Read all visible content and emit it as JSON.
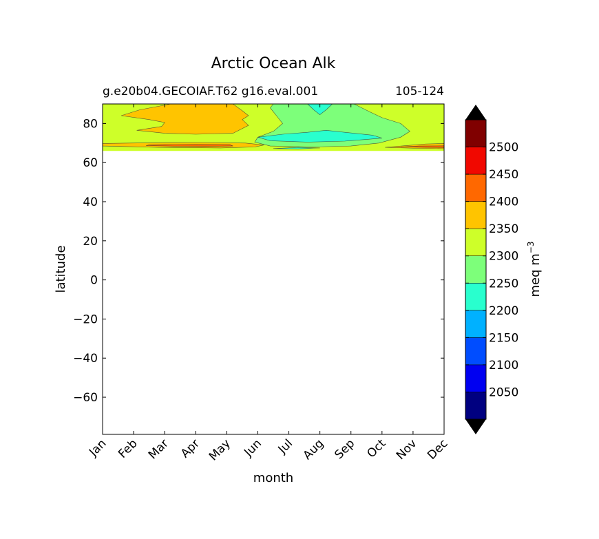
{
  "chart_data": {
    "type": "contour",
    "title": "Arctic Ocean Alk",
    "subtitle_left": "g.e20b04.GECOIAF.T62 g16.eval.001",
    "subtitle_right": "105-124",
    "xlabel": "month",
    "ylabel": "latitude",
    "x_ticks": [
      "Jan",
      "Feb",
      "Mar",
      "Apr",
      "May",
      "Jun",
      "Jul",
      "Aug",
      "Sep",
      "Oct",
      "Nov",
      "Dec"
    ],
    "xlim": [
      0,
      11
    ],
    "y_ticks": [
      80,
      60,
      40,
      20,
      0,
      -20,
      -40,
      -60
    ],
    "y_tick_labels": [
      "80",
      "60",
      "40",
      "20",
      "0",
      "−20",
      "−40",
      "−60"
    ],
    "ylim": [
      -79,
      90
    ],
    "data_lat_min": 66,
    "colorbar": {
      "label_prefix": "meq m",
      "label_exponent": "−3",
      "levels": [
        2000,
        2050,
        2100,
        2150,
        2200,
        2250,
        2300,
        2350,
        2400,
        2450,
        2500,
        2550
      ],
      "tick_labels": [
        "2050",
        "2100",
        "2150",
        "2200",
        "2250",
        "2300",
        "2350",
        "2400",
        "2450",
        "2500"
      ],
      "colors": [
        "#000080",
        "#0000f1",
        "#004dff",
        "#00b1ff",
        "#29ffce",
        "#7dff7a",
        "#ceff29",
        "#ffc400",
        "#ff6800",
        "#f10800",
        "#800000"
      ],
      "under_color": "#000000",
      "over_color": "#000000"
    },
    "regions": [
      {
        "level": "2300-2350",
        "color": "#ceff29",
        "points": [
          [
            0,
            66
          ],
          [
            11,
            66
          ],
          [
            11,
            90
          ],
          [
            0,
            90
          ]
        ]
      },
      {
        "level": "2250-2300",
        "color": "#7dff7a",
        "points": [
          [
            5.5,
            90
          ],
          [
            8.1,
            90
          ],
          [
            8.6,
            86
          ],
          [
            9.0,
            83
          ],
          [
            9.6,
            80
          ],
          [
            9.9,
            76
          ],
          [
            9.6,
            73
          ],
          [
            8.9,
            70
          ],
          [
            8.0,
            68.5
          ],
          [
            6.8,
            68
          ],
          [
            5.4,
            68.5
          ],
          [
            4.9,
            70.5
          ],
          [
            5.0,
            73
          ],
          [
            5.5,
            76
          ],
          [
            5.8,
            80
          ],
          [
            5.6,
            84
          ],
          [
            5.4,
            88
          ]
        ]
      },
      {
        "level": "2200-2250",
        "color": "#29ffce",
        "points": [
          [
            5.0,
            73
          ],
          [
            5.8,
            74.5
          ],
          [
            6.6,
            75.5
          ],
          [
            7.2,
            76.5
          ],
          [
            7.8,
            75.5
          ],
          [
            8.7,
            74
          ],
          [
            9.0,
            72.5
          ],
          [
            7.8,
            71
          ],
          [
            6.6,
            70.5
          ],
          [
            5.4,
            71.2
          ]
        ]
      },
      {
        "level": "2200-2250",
        "color": "#29ffce",
        "points": [
          [
            6.6,
            90
          ],
          [
            7.4,
            90
          ],
          [
            7.2,
            87
          ],
          [
            7.0,
            84.5
          ],
          [
            6.8,
            87
          ]
        ]
      },
      {
        "level": "2200-2250",
        "color": "#29ffce",
        "points": [
          [
            5.5,
            67.2
          ],
          [
            6.3,
            67.8
          ],
          [
            7.0,
            67.5
          ],
          [
            6.3,
            67.0
          ]
        ]
      },
      {
        "level": "2350-2400",
        "color": "#ffc400",
        "points": [
          [
            2.2,
            90
          ],
          [
            4.2,
            90
          ],
          [
            4.5,
            86.5
          ],
          [
            4.7,
            84
          ],
          [
            4.5,
            82
          ],
          [
            4.7,
            79
          ],
          [
            4.2,
            75
          ],
          [
            3.0,
            74.5
          ],
          [
            2.0,
            75
          ],
          [
            1.1,
            76.5
          ],
          [
            1.9,
            78.5
          ],
          [
            2.0,
            80.5
          ],
          [
            1.5,
            82
          ],
          [
            0.6,
            84
          ],
          [
            1.2,
            87
          ]
        ]
      },
      {
        "level": "2350-2400",
        "color": "#ffc400",
        "points": [
          [
            0,
            68.5
          ],
          [
            1.8,
            67.8
          ],
          [
            3.8,
            67.5
          ],
          [
            4.9,
            68
          ],
          [
            5.2,
            69
          ],
          [
            4.6,
            70
          ],
          [
            3.2,
            70.3
          ],
          [
            2.0,
            70.2
          ],
          [
            0.9,
            70
          ],
          [
            0,
            69.8
          ]
        ]
      },
      {
        "level": "2350-2400",
        "color": "#ffc400",
        "points": [
          [
            9.1,
            67.8
          ],
          [
            10.2,
            67.3
          ],
          [
            11,
            67.1
          ],
          [
            11,
            69.8
          ],
          [
            10.4,
            69.5
          ],
          [
            9.7,
            68.6
          ]
        ]
      },
      {
        "level": "2400-2450",
        "color": "#ff6800",
        "points": [
          [
            1.4,
            68.7
          ],
          [
            2.3,
            68.4
          ],
          [
            3.3,
            68.3
          ],
          [
            4.2,
            68.5
          ],
          [
            4.1,
            69.2
          ],
          [
            3.0,
            69.3
          ],
          [
            2.0,
            69.2
          ],
          [
            1.5,
            69.0
          ]
        ]
      },
      {
        "level": "2400-2450",
        "color": "#ff6800",
        "points": [
          [
            9.6,
            68.0
          ],
          [
            10.4,
            67.8
          ],
          [
            11,
            67.7
          ],
          [
            11,
            68.6
          ],
          [
            10.2,
            68.5
          ]
        ]
      }
    ]
  }
}
